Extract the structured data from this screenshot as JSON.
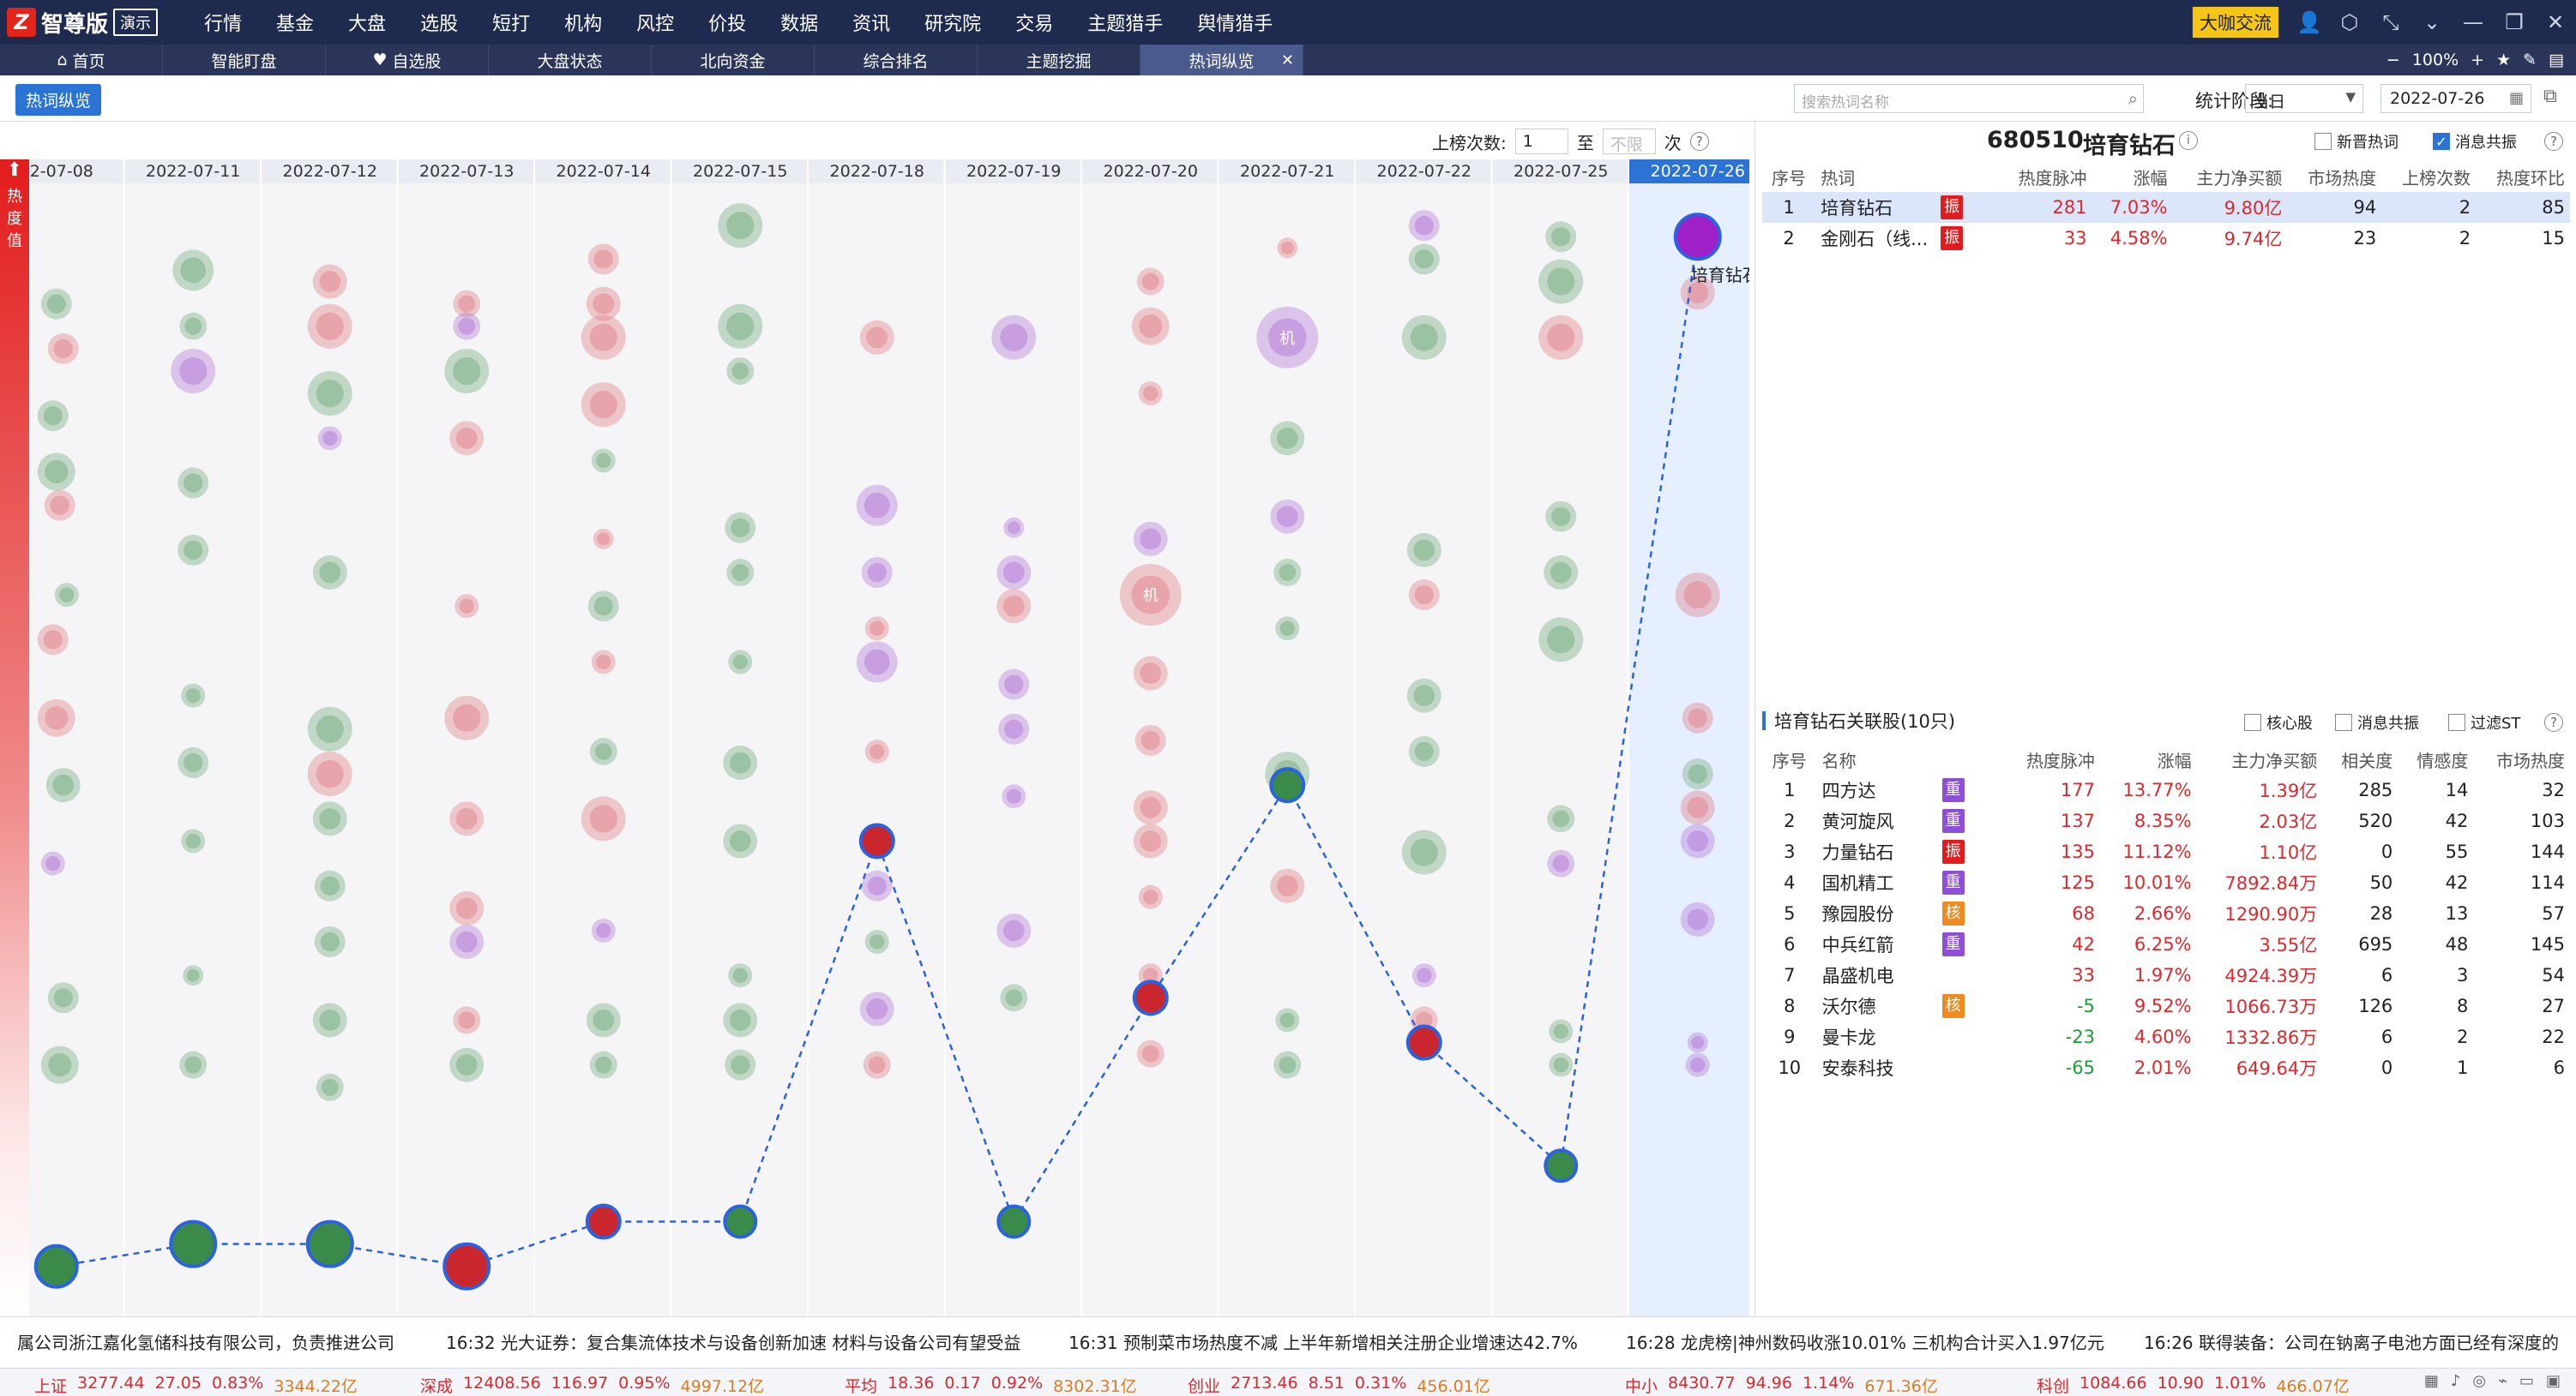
{
  "app": {
    "logo_mark": "Z",
    "logo_text": "智尊版",
    "demo_badge": "演示"
  },
  "nav": [
    "行情",
    "基金",
    "大盘",
    "选股",
    "短打",
    "机构",
    "风控",
    "价投",
    "数据",
    "资讯",
    "研究院",
    "交易",
    "主题猎手",
    "舆情猎手"
  ],
  "topright": {
    "bigshot_label": "大咖交流",
    "zoom": "100%"
  },
  "tabs": [
    {
      "label": "首页",
      "icon": "home-icon",
      "glyph": "⌂"
    },
    {
      "label": "智能盯盘",
      "icon": "",
      "glyph": ""
    },
    {
      "label": "自选股",
      "icon": "heart-icon",
      "glyph": "♥"
    },
    {
      "label": "大盘状态",
      "icon": "",
      "glyph": ""
    },
    {
      "label": "北向资金",
      "icon": "",
      "glyph": ""
    },
    {
      "label": "综合排名",
      "icon": "",
      "glyph": ""
    },
    {
      "label": "主题挖掘",
      "icon": "",
      "glyph": ""
    },
    {
      "label": "热词纵览",
      "icon": "",
      "glyph": "",
      "active": true
    }
  ],
  "toolbar": {
    "pill_label": "热词纵览",
    "search_placeholder": "搜索热词名称",
    "stat_label": "统计阶段:",
    "stat_value": "当日",
    "date_value": "2022-07-26"
  },
  "count_filter": {
    "label": "上榜次数:",
    "from": "1",
    "to_label": "至",
    "to_placeholder": "不限",
    "unit": "次"
  },
  "heat_axis_label": "热度值",
  "chart_data": {
    "type": "scatter",
    "dates": [
      "2022-07-08",
      "2022-07-11",
      "2022-07-12",
      "2022-07-13",
      "2022-07-14",
      "2022-07-15",
      "2022-07-18",
      "2022-07-19",
      "2022-07-20",
      "2022-07-21",
      "2022-07-22",
      "2022-07-25",
      "2022-07-26"
    ],
    "dates_display": [
      "22-07-08",
      "2022-07-11",
      "2022-07-12",
      "2022-07-13",
      "2022-07-14",
      "2022-07-15",
      "2022-07-18",
      "2022-07-19",
      "2022-07-20",
      "2022-07-21",
      "2022-07-22",
      "2022-07-25",
      "2022-07-26"
    ],
    "selected_date": "2022-07-26",
    "highlight_term": "培育钻石",
    "highlight_series": [
      {
        "heat": 0.04,
        "color": "#3a8a4a",
        "size": 24
      },
      {
        "heat": 0.06,
        "color": "#3a8a4a",
        "size": 26
      },
      {
        "heat": 0.06,
        "color": "#3a8a4a",
        "size": 26
      },
      {
        "heat": 0.04,
        "color": "#c9262d",
        "size": 26
      },
      {
        "heat": 0.08,
        "color": "#c9262d",
        "size": 19
      },
      {
        "heat": 0.08,
        "color": "#3a8a4a",
        "size": 18
      },
      {
        "heat": 0.42,
        "color": "#c9262d",
        "size": 19
      },
      {
        "heat": 0.08,
        "color": "#3a8a4a",
        "size": 18
      },
      {
        "heat": 0.28,
        "color": "#c9262d",
        "size": 19
      },
      {
        "heat": 0.47,
        "color": "#3a8a4a",
        "size": 19
      },
      {
        "heat": 0.24,
        "color": "#c9262d",
        "size": 19
      },
      {
        "heat": 0.13,
        "color": "#3a8a4a",
        "size": 18
      },
      {
        "heat": 0.96,
        "color": "#a020c8",
        "size": 26
      }
    ],
    "bubbles": [
      [
        [
          0.03,
          0.9,
          "g",
          18
        ],
        [
          0.05,
          0.86,
          "r",
          18
        ],
        [
          0.02,
          0.8,
          "g",
          18
        ],
        [
          0.03,
          0.75,
          "g",
          22
        ],
        [
          0.04,
          0.72,
          "r",
          18
        ],
        [
          0.06,
          0.64,
          "g",
          14
        ],
        [
          0.02,
          0.6,
          "r",
          18
        ],
        [
          0.03,
          0.53,
          "r",
          22
        ],
        [
          0.05,
          0.47,
          "g",
          20
        ],
        [
          0.02,
          0.4,
          "p",
          14
        ],
        [
          0.05,
          0.28,
          "g",
          18
        ],
        [
          0.04,
          0.22,
          "g",
          22
        ]
      ],
      [
        [
          0.5,
          0.93,
          "g",
          24
        ],
        [
          0.5,
          0.88,
          "g",
          16
        ],
        [
          0.5,
          0.84,
          "p",
          26
        ],
        [
          0.5,
          0.74,
          "g",
          18
        ],
        [
          0.5,
          0.68,
          "g",
          18
        ],
        [
          0.5,
          0.55,
          "g",
          14
        ],
        [
          0.5,
          0.49,
          "g",
          18
        ],
        [
          0.5,
          0.42,
          "g",
          14
        ],
        [
          0.5,
          0.3,
          "g",
          12
        ],
        [
          0.5,
          0.22,
          "g",
          16
        ]
      ],
      [
        [
          0.5,
          0.92,
          "r",
          20
        ],
        [
          0.5,
          0.88,
          "r",
          26
        ],
        [
          0.5,
          0.82,
          "g",
          26
        ],
        [
          0.5,
          0.78,
          "p",
          14
        ],
        [
          0.5,
          0.66,
          "g",
          20
        ],
        [
          0.5,
          0.52,
          "g",
          26
        ],
        [
          0.5,
          0.48,
          "r",
          26
        ],
        [
          0.5,
          0.44,
          "g",
          20
        ],
        [
          0.5,
          0.38,
          "g",
          18
        ],
        [
          0.5,
          0.33,
          "g",
          18
        ],
        [
          0.5,
          0.26,
          "g",
          20
        ],
        [
          0.5,
          0.2,
          "g",
          16
        ]
      ],
      [
        [
          0.5,
          0.9,
          "r",
          16
        ],
        [
          0.5,
          0.88,
          "p",
          16
        ],
        [
          0.5,
          0.84,
          "g",
          26
        ],
        [
          0.5,
          0.78,
          "r",
          20
        ],
        [
          0.5,
          0.63,
          "r",
          14
        ],
        [
          0.5,
          0.53,
          "r",
          26
        ],
        [
          0.5,
          0.44,
          "r",
          20
        ],
        [
          0.5,
          0.36,
          "r",
          20
        ],
        [
          0.5,
          0.33,
          "p",
          20
        ],
        [
          0.5,
          0.26,
          "r",
          16
        ],
        [
          0.5,
          0.22,
          "g",
          20
        ]
      ],
      [
        [
          0.5,
          0.94,
          "r",
          18
        ],
        [
          0.5,
          0.9,
          "r",
          20
        ],
        [
          0.5,
          0.87,
          "r",
          26
        ],
        [
          0.5,
          0.81,
          "r",
          26
        ],
        [
          0.5,
          0.76,
          "g",
          14
        ],
        [
          0.5,
          0.69,
          "r",
          12
        ],
        [
          0.5,
          0.63,
          "g",
          18
        ],
        [
          0.5,
          0.58,
          "r",
          14
        ],
        [
          0.5,
          0.5,
          "g",
          16
        ],
        [
          0.5,
          0.44,
          "r",
          26
        ],
        [
          0.5,
          0.34,
          "p",
          14
        ],
        [
          0.5,
          0.26,
          "g",
          20
        ],
        [
          0.5,
          0.22,
          "g",
          16
        ]
      ],
      [
        [
          0.5,
          0.97,
          "g",
          26
        ],
        [
          0.5,
          0.88,
          "g",
          26
        ],
        [
          0.5,
          0.84,
          "g",
          16
        ],
        [
          0.5,
          0.7,
          "g",
          18
        ],
        [
          0.5,
          0.66,
          "g",
          16
        ],
        [
          0.5,
          0.58,
          "g",
          14
        ],
        [
          0.5,
          0.49,
          "g",
          20
        ],
        [
          0.5,
          0.42,
          "g",
          20
        ],
        [
          0.5,
          0.3,
          "g",
          14
        ],
        [
          0.5,
          0.26,
          "g",
          20
        ],
        [
          0.5,
          0.22,
          "g",
          18
        ]
      ],
      [
        [
          0.5,
          0.87,
          "r",
          20
        ],
        [
          0.5,
          0.72,
          "p",
          24
        ],
        [
          0.5,
          0.66,
          "p",
          18
        ],
        [
          0.5,
          0.61,
          "r",
          14
        ],
        [
          0.5,
          0.58,
          "p",
          24
        ],
        [
          0.5,
          0.5,
          "r",
          14
        ],
        [
          0.5,
          0.38,
          "p",
          18
        ],
        [
          0.5,
          0.33,
          "g",
          14
        ],
        [
          0.5,
          0.27,
          "p",
          20
        ],
        [
          0.5,
          0.22,
          "r",
          16
        ]
      ],
      [
        [
          0.5,
          0.87,
          "p",
          26
        ],
        [
          0.5,
          0.7,
          "p",
          12
        ],
        [
          0.5,
          0.66,
          "p",
          20
        ],
        [
          0.5,
          0.63,
          "r",
          20
        ],
        [
          0.5,
          0.56,
          "p",
          18
        ],
        [
          0.5,
          0.52,
          "p",
          18
        ],
        [
          0.5,
          0.46,
          "p",
          14
        ],
        [
          0.5,
          0.34,
          "p",
          20
        ],
        [
          0.5,
          0.28,
          "g",
          16
        ]
      ],
      [
        [
          0.5,
          0.92,
          "r",
          16
        ],
        [
          0.5,
          0.88,
          "r",
          22
        ],
        [
          0.5,
          0.82,
          "r",
          14
        ],
        [
          0.5,
          0.69,
          "p",
          20
        ],
        [
          0.5,
          0.64,
          "r",
          36
        ],
        [
          0.5,
          0.57,
          "r",
          20
        ],
        [
          0.5,
          0.51,
          "r",
          18
        ],
        [
          0.5,
          0.45,
          "r",
          20
        ],
        [
          0.5,
          0.42,
          "r",
          20
        ],
        [
          0.5,
          0.37,
          "r",
          14
        ],
        [
          0.5,
          0.3,
          "r",
          14
        ],
        [
          0.5,
          0.23,
          "r",
          16
        ]
      ],
      [
        [
          0.5,
          0.95,
          "r",
          12
        ],
        [
          0.5,
          0.87,
          "p",
          36
        ],
        [
          0.5,
          0.78,
          "g",
          20
        ],
        [
          0.5,
          0.71,
          "p",
          20
        ],
        [
          0.5,
          0.66,
          "g",
          16
        ],
        [
          0.5,
          0.61,
          "g",
          14
        ],
        [
          0.5,
          0.48,
          "g",
          26
        ],
        [
          0.5,
          0.38,
          "r",
          20
        ],
        [
          0.5,
          0.26,
          "g",
          14
        ],
        [
          0.5,
          0.22,
          "g",
          16
        ]
      ],
      [
        [
          0.5,
          0.97,
          "p",
          18
        ],
        [
          0.5,
          0.94,
          "g",
          18
        ],
        [
          0.5,
          0.87,
          "g",
          26
        ],
        [
          0.5,
          0.68,
          "g",
          20
        ],
        [
          0.5,
          0.64,
          "r",
          18
        ],
        [
          0.5,
          0.55,
          "g",
          20
        ],
        [
          0.5,
          0.5,
          "g",
          18
        ],
        [
          0.5,
          0.41,
          "g",
          26
        ],
        [
          0.5,
          0.3,
          "p",
          14
        ],
        [
          0.5,
          0.26,
          "r",
          16
        ]
      ],
      [
        [
          0.5,
          0.96,
          "g",
          18
        ],
        [
          0.5,
          0.92,
          "g",
          26
        ],
        [
          0.5,
          0.87,
          "r",
          26
        ],
        [
          0.5,
          0.71,
          "g",
          18
        ],
        [
          0.5,
          0.66,
          "g",
          20
        ],
        [
          0.5,
          0.6,
          "g",
          26
        ],
        [
          0.5,
          0.44,
          "g",
          16
        ],
        [
          0.5,
          0.4,
          "p",
          16
        ],
        [
          0.5,
          0.25,
          "g",
          14
        ],
        [
          0.5,
          0.22,
          "g",
          14
        ]
      ],
      [
        [
          0.5,
          0.96,
          "g",
          20
        ],
        [
          0.5,
          0.91,
          "r",
          20
        ],
        [
          0.5,
          0.64,
          "r",
          26
        ],
        [
          0.5,
          0.53,
          "r",
          18
        ],
        [
          0.5,
          0.48,
          "g",
          18
        ],
        [
          0.5,
          0.45,
          "r",
          20
        ],
        [
          0.5,
          0.42,
          "p",
          20
        ],
        [
          0.5,
          0.35,
          "p",
          20
        ],
        [
          0.5,
          0.24,
          "p",
          12
        ],
        [
          0.5,
          0.22,
          "p",
          14
        ]
      ]
    ],
    "bubble_colors": {
      "g": "#6fa87a",
      "r": "#e07a82",
      "p": "#b073d6"
    },
    "special_text": [
      {
        "col": 9,
        "y": 0.87,
        "text": "机"
      },
      {
        "col": 8,
        "y": 0.64,
        "text": "机"
      }
    ]
  },
  "detail": {
    "code": "680510",
    "name": "培育钻石",
    "chk_new": "新晋热词",
    "chk_news": "消息共振",
    "cols": [
      "序号",
      "热词",
      "热度脉冲",
      "涨幅",
      "主力净买额",
      "市场热度",
      "上榜次数",
      "热度环比"
    ],
    "rows": [
      {
        "no": "1",
        "term": "培育钻石",
        "tag": "振",
        "pulse": "281",
        "chg": "7.03%",
        "net": "9.80亿",
        "heat": "94",
        "times": "2",
        "ratio": "85"
      },
      {
        "no": "2",
        "term": "金刚石（线...",
        "tag": "振",
        "pulse": "33",
        "chg": "4.58%",
        "net": "9.74亿",
        "heat": "23",
        "times": "2",
        "ratio": "15"
      }
    ]
  },
  "related": {
    "title": "培育钻石关联股(10只)",
    "chk_core": "核心股",
    "chk_news": "消息共振",
    "chk_st": "过滤ST",
    "cols": [
      "序号",
      "名称",
      "热度脉冲",
      "涨幅",
      "主力净买额",
      "相关度",
      "情感度",
      "市场热度"
    ],
    "rows": [
      {
        "no": "1",
        "name": "四方达",
        "tag": "重",
        "tagc": "zhong",
        "pulse": "177",
        "chg": "13.77%",
        "net": "1.39亿",
        "rel": "285",
        "emo": "14",
        "heat": "32",
        "dir": "up"
      },
      {
        "no": "2",
        "name": "黄河旋风",
        "tag": "重",
        "tagc": "zhong",
        "pulse": "137",
        "chg": "8.35%",
        "net": "2.03亿",
        "rel": "520",
        "emo": "42",
        "heat": "103",
        "dir": "up"
      },
      {
        "no": "3",
        "name": "力量钻石",
        "tag": "振",
        "tagc": "zhen",
        "pulse": "135",
        "chg": "11.12%",
        "net": "1.10亿",
        "rel": "0",
        "emo": "55",
        "heat": "144",
        "dir": "up"
      },
      {
        "no": "4",
        "name": "国机精工",
        "tag": "重",
        "tagc": "zhong",
        "pulse": "125",
        "chg": "10.01%",
        "net": "7892.84万",
        "rel": "50",
        "emo": "42",
        "heat": "114",
        "dir": "up"
      },
      {
        "no": "5",
        "name": "豫园股份",
        "tag": "核",
        "tagc": "he",
        "pulse": "68",
        "chg": "2.66%",
        "net": "1290.90万",
        "rel": "28",
        "emo": "13",
        "heat": "57",
        "dir": "up"
      },
      {
        "no": "6",
        "name": "中兵红箭",
        "tag": "重",
        "tagc": "zhong",
        "pulse": "42",
        "chg": "6.25%",
        "net": "3.55亿",
        "rel": "695",
        "emo": "48",
        "heat": "145",
        "dir": "up"
      },
      {
        "no": "7",
        "name": "晶盛机电",
        "tag": "",
        "tagc": "",
        "pulse": "33",
        "chg": "1.97%",
        "net": "4924.39万",
        "rel": "6",
        "emo": "3",
        "heat": "54",
        "dir": "up"
      },
      {
        "no": "8",
        "name": "沃尔德",
        "tag": "核",
        "tagc": "he",
        "pulse": "-5",
        "chg": "9.52%",
        "net": "1066.73万",
        "rel": "126",
        "emo": "8",
        "heat": "27",
        "dir": "down"
      },
      {
        "no": "9",
        "name": "曼卡龙",
        "tag": "",
        "tagc": "",
        "pulse": "-23",
        "chg": "4.60%",
        "net": "1332.86万",
        "rel": "6",
        "emo": "2",
        "heat": "22",
        "dir": "down"
      },
      {
        "no": "10",
        "name": "安泰科技",
        "tag": "",
        "tagc": "",
        "pulse": "-65",
        "chg": "2.01%",
        "net": "649.64万",
        "rel": "0",
        "emo": "1",
        "heat": "6",
        "dir": "down"
      }
    ]
  },
  "ticker": [
    "属公司浙江嘉化氢储科技有限公司，负责推进公司",
    "16:32 光大证券：复合集流体技术与设备创新加速 材料与设备公司有望受益",
    "16:31 预制菜市场热度不减 上半年新增相关注册企业增速达42.7%",
    "16:28 龙虎榜|神州数码收涨10.01% 三机构合计买入1.97亿元",
    "16:26 联得装备：公司在钠离子电池方面已经有深度的"
  ],
  "indices": [
    {
      "name": "上证",
      "value": "3277.44",
      "chg": "27.05",
      "pct": "0.83%",
      "amt": "3344.22亿"
    },
    {
      "name": "深成",
      "value": "12408.56",
      "chg": "116.97",
      "pct": "0.95%",
      "amt": "4997.12亿"
    },
    {
      "name": "平均",
      "value": "18.36",
      "chg": "0.17",
      "pct": "0.92%",
      "amt": "8302.31亿"
    },
    {
      "name": "创业",
      "value": "2713.46",
      "chg": "8.51",
      "pct": "0.31%",
      "amt": "456.01亿"
    },
    {
      "name": "中小",
      "value": "8430.77",
      "chg": "94.96",
      "pct": "1.14%",
      "amt": "671.36亿"
    },
    {
      "name": "科创",
      "value": "1084.66",
      "chg": "10.90",
      "pct": "1.01%",
      "amt": "466.07亿"
    }
  ]
}
